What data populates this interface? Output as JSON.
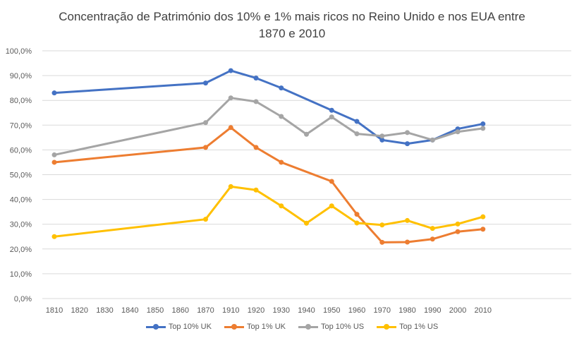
{
  "chart_data": {
    "type": "line",
    "title": "Concentração de Património dos 10% e 1% mais ricos no Reino Unido e nos EUA entre 1870 e 2010",
    "title_lines": [
      "Concentração de Património dos 10% e 1% mais ricos no Reino Unido e nos EUA entre",
      "1870 e 2010"
    ],
    "categories": [
      "1810",
      "1820",
      "1830",
      "1840",
      "1850",
      "1860",
      "1870",
      "1910",
      "1920",
      "1930",
      "1940",
      "1950",
      "1960",
      "1970",
      "1980",
      "1990",
      "2000",
      "2010"
    ],
    "y_ticks": [
      "0,0%",
      "10,0%",
      "20,0%",
      "30,0%",
      "40,0%",
      "50,0%",
      "60,0%",
      "70,0%",
      "80,0%",
      "90,0%",
      "100,0%"
    ],
    "ylim": [
      0,
      100
    ],
    "grid": true,
    "legend_position": "bottom",
    "series": [
      {
        "name": "Top 10% UK",
        "color": "#4472C4",
        "values": [
          83,
          null,
          null,
          null,
          null,
          null,
          87,
          92,
          89,
          85,
          null,
          76,
          71.5,
          64,
          62.5,
          64,
          68.5,
          70.5
        ]
      },
      {
        "name": "Top 1% UK",
        "color": "#ED7D31",
        "values": [
          55,
          null,
          null,
          null,
          null,
          null,
          61,
          69,
          61,
          55,
          null,
          47.3,
          34,
          22.7,
          22.8,
          24,
          27,
          28
        ]
      },
      {
        "name": "Top 10% US",
        "color": "#A5A5A5",
        "values": [
          58,
          null,
          null,
          null,
          null,
          null,
          71,
          81,
          79.5,
          73.5,
          66.3,
          73.3,
          66.5,
          65.6,
          67,
          64,
          67.3,
          68.7
        ]
      },
      {
        "name": "Top 1% US",
        "color": "#FFC000",
        "values": [
          25,
          null,
          null,
          null,
          null,
          null,
          32,
          45.2,
          43.8,
          37.4,
          30.4,
          37.4,
          30.5,
          29.7,
          31.5,
          28.3,
          30.1,
          33
        ]
      }
    ]
  }
}
